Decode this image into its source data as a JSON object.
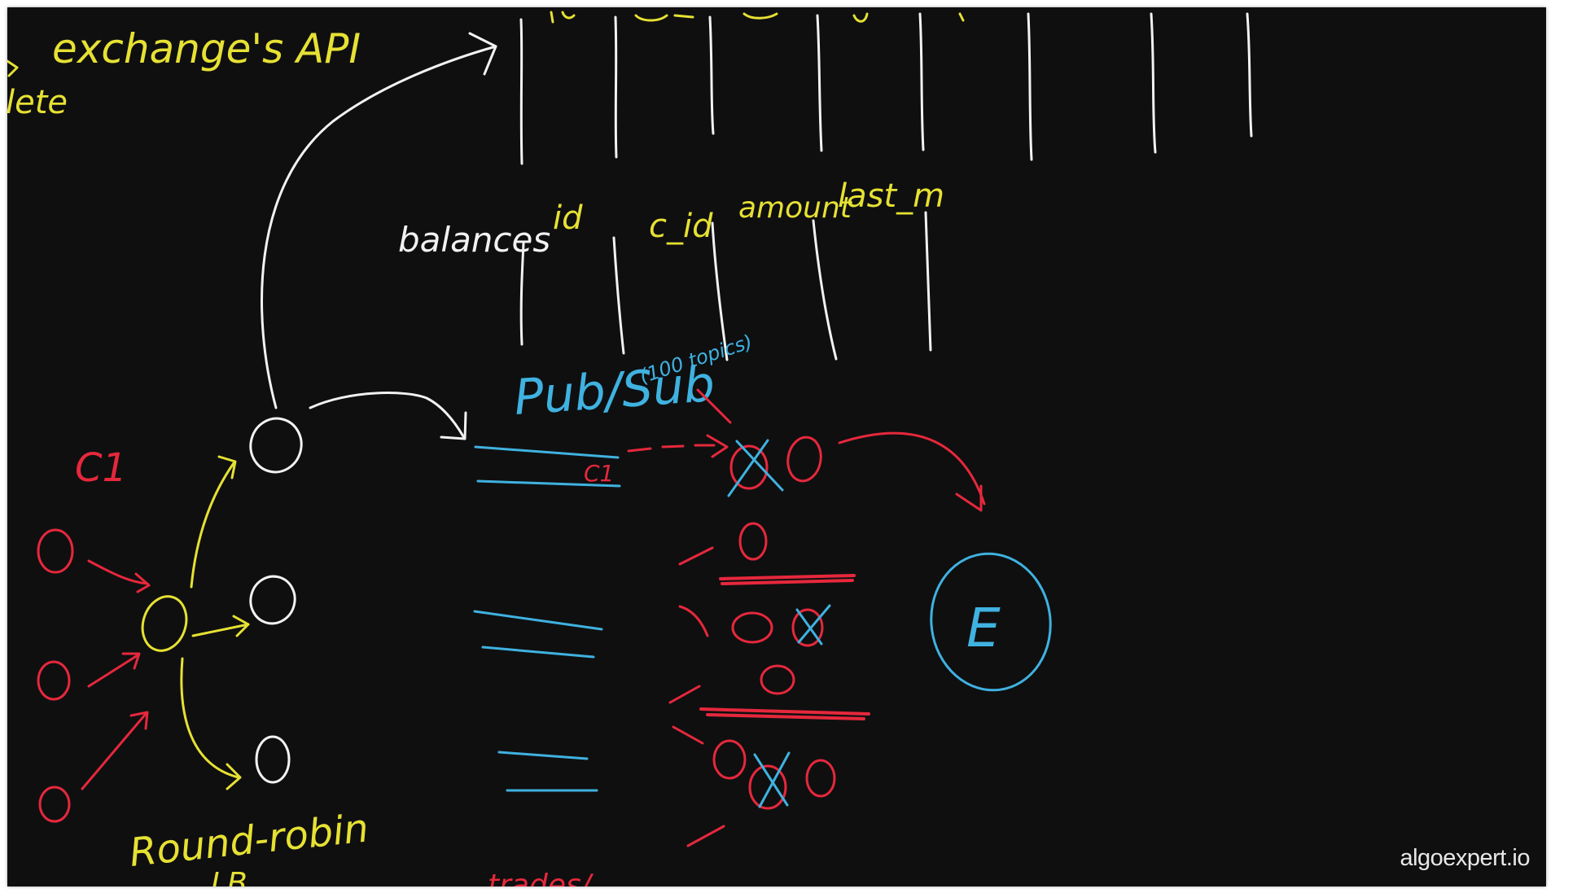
{
  "colors": {
    "background": "#0f0f10",
    "white": "#f2f2f2",
    "yellow": "#e6e133",
    "red": "#e6283c",
    "blue": "#3fb2e0"
  },
  "labels": {
    "api": "exchange's API",
    "delete_partial": "lete",
    "balances": "balances",
    "col_id": "id",
    "col_cid": "c_id",
    "col_amount": "amount",
    "col_last": "last_m",
    "pubsub": "Pub/Sub",
    "topics": "(100 topics)",
    "round_robin": "Round-robin",
    "lb": "LB",
    "client": "C1",
    "exchange": "E",
    "queue_marker": "C1",
    "trades_partial": "trades/"
  },
  "brand": "algoexpert.io"
}
